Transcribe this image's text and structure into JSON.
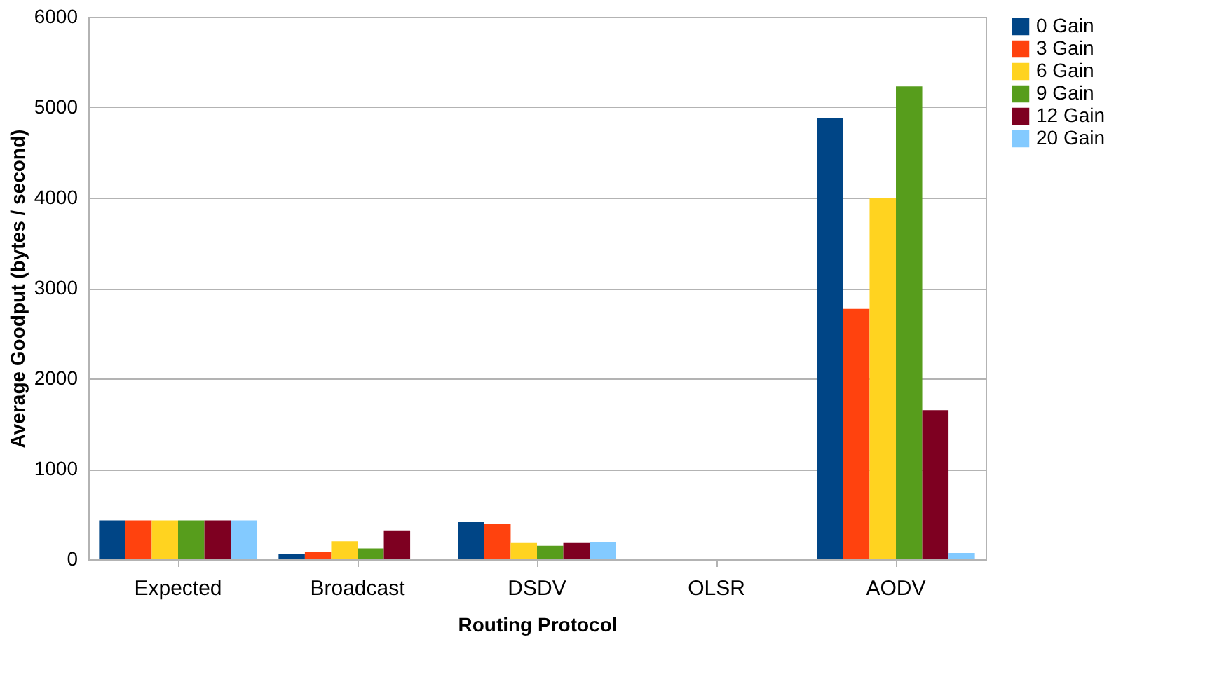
{
  "chart_data": {
    "type": "bar",
    "xlabel": "Routing Protocol",
    "ylabel": "Average Goodput (bytes / second)",
    "categories": [
      "Expected",
      "Broadcast",
      "DSDV",
      "OLSR",
      "AODV"
    ],
    "series": [
      {
        "name": "0 Gain",
        "color": "#004586",
        "values": [
          430,
          60,
          410,
          0,
          4880
        ]
      },
      {
        "name": "3 Gain",
        "color": "#ff420e",
        "values": [
          430,
          80,
          390,
          0,
          2770
        ]
      },
      {
        "name": "6 Gain",
        "color": "#ffd320",
        "values": [
          430,
          200,
          180,
          0,
          4000
        ]
      },
      {
        "name": "9 Gain",
        "color": "#579d1c",
        "values": [
          430,
          120,
          150,
          0,
          5230
        ]
      },
      {
        "name": "12 Gain",
        "color": "#7e0021",
        "values": [
          430,
          320,
          180,
          0,
          1650
        ]
      },
      {
        "name": "20 Gain",
        "color": "#83caff",
        "values": [
          430,
          0,
          190,
          0,
          70
        ]
      }
    ],
    "ylim": [
      0,
      6000
    ],
    "yticks": [
      0,
      1000,
      2000,
      3000,
      4000,
      5000,
      6000
    ],
    "grid": "y",
    "legend": "right"
  }
}
